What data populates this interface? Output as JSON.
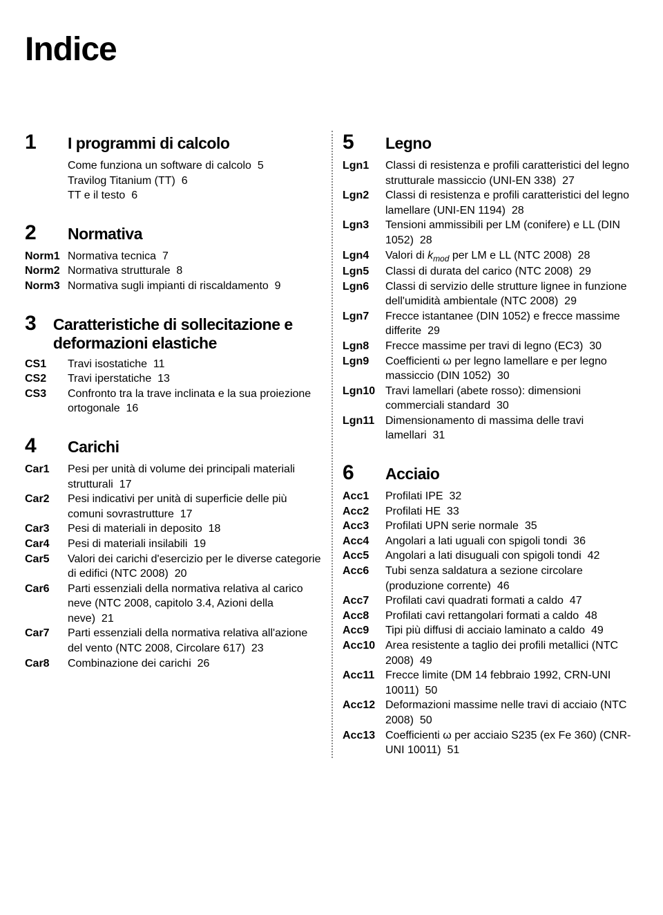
{
  "title": "Indice",
  "left_sections": [
    {
      "num": "1",
      "title": "I programmi di calcolo",
      "entries": [
        {
          "code": "",
          "parts": [
            [
              "Come funziona un software di calcolo",
              "5"
            ]
          ]
        },
        {
          "code": "",
          "parts": [
            [
              "Travilog Titanium (TT)",
              "6"
            ]
          ]
        },
        {
          "code": "",
          "parts": [
            [
              "TT e il testo",
              "6"
            ]
          ]
        }
      ]
    },
    {
      "num": "2",
      "title": "Normativa",
      "entries": [
        {
          "code": "Norm1",
          "parts": [
            [
              "Normativa tecnica",
              "7"
            ]
          ]
        },
        {
          "code": "Norm2",
          "parts": [
            [
              "Normativa strutturale",
              "8"
            ]
          ]
        },
        {
          "code": "Norm3",
          "parts": [
            [
              "Normativa sugli impianti di riscaldamento",
              "9"
            ]
          ]
        }
      ]
    },
    {
      "num": "3",
      "title": "Caratteristiche di sollecitazione e deformazioni elastiche",
      "entries": [
        {
          "code": "CS1",
          "parts": [
            [
              "Travi isostatiche",
              "11"
            ]
          ]
        },
        {
          "code": "CS2",
          "parts": [
            [
              "Travi iperstatiche",
              "13"
            ]
          ]
        },
        {
          "code": "CS3",
          "parts": [
            [
              "Confronto tra la trave inclinata e la sua proiezione ortogonale",
              "16"
            ]
          ]
        }
      ]
    },
    {
      "num": "4",
      "title": "Carichi",
      "entries": [
        {
          "code": "Car1",
          "parts": [
            [
              "Pesi per unità di volume dei principali materiali strutturali",
              "17"
            ]
          ]
        },
        {
          "code": "Car2",
          "parts": [
            [
              "Pesi indicativi per unità di superficie delle più comuni sovrastrutture",
              "17"
            ]
          ]
        },
        {
          "code": "Car3",
          "parts": [
            [
              "Pesi di materiali in deposito",
              "18"
            ]
          ]
        },
        {
          "code": "Car4",
          "parts": [
            [
              "Pesi di materiali insilabili",
              "19"
            ]
          ]
        },
        {
          "code": "Car5",
          "parts": [
            [
              "Valori dei carichi d'esercizio per le diverse categorie di edifici (NTC 2008)",
              "20"
            ]
          ]
        },
        {
          "code": "Car6",
          "parts": [
            [
              "Parti essenziali della normativa relativa al carico neve (NTC 2008, capitolo 3.4, Azioni della neve)",
              "21"
            ]
          ]
        },
        {
          "code": "Car7",
          "parts": [
            [
              "Parti essenziali della normativa relativa all'azione del vento (NTC 2008, Circolare 617)",
              "23"
            ]
          ]
        },
        {
          "code": "Car8",
          "parts": [
            [
              "Combinazione dei carichi",
              "26"
            ]
          ]
        }
      ]
    }
  ],
  "right_sections": [
    {
      "num": "5",
      "title": "Legno",
      "entries": [
        {
          "code": "Lgn1",
          "parts": [
            [
              "Classi di resistenza e profili caratteristici del legno strutturale massiccio (UNI-EN 338)",
              "27"
            ]
          ]
        },
        {
          "code": "Lgn2",
          "parts": [
            [
              "Classi di resistenza e profili caratteristici del legno lamellare (UNI-EN 1194)",
              "28"
            ]
          ]
        },
        {
          "code": "Lgn3",
          "parts": [
            [
              "Tensioni ammissibili per LM (conifere) e LL (DIN 1052)",
              "28"
            ]
          ]
        },
        {
          "code": "Lgn4",
          "parts": [
            [
              "Valori di k_mod per LM e LL (NTC 2008)",
              "28"
            ]
          ],
          "kmod": true
        },
        {
          "code": "Lgn5",
          "parts": [
            [
              "Classi di durata del carico (NTC 2008)",
              "29"
            ]
          ]
        },
        {
          "code": "Lgn6",
          "parts": [
            [
              "Classi di servizio delle strutture lignee in funzione dell'umidità ambientale (NTC 2008)",
              "29"
            ]
          ]
        },
        {
          "code": "Lgn7",
          "parts": [
            [
              "Frecce istantanee (DIN 1052) e frecce massime differite",
              "29"
            ]
          ]
        },
        {
          "code": "Lgn8",
          "parts": [
            [
              "Frecce massime per travi di legno (EC3)",
              "30"
            ]
          ]
        },
        {
          "code": "Lgn9",
          "parts": [
            [
              "Coefficienti ω per legno lamellare e per legno massiccio (DIN 1052)",
              "30"
            ]
          ]
        },
        {
          "code": "Lgn10",
          "parts": [
            [
              "Travi lamellari (abete rosso): dimensioni commerciali standard",
              "30"
            ]
          ]
        },
        {
          "code": "Lgn11",
          "parts": [
            [
              "Dimensionamento di massima delle travi lamellari",
              "31"
            ]
          ]
        }
      ]
    },
    {
      "num": "6",
      "title": "Acciaio",
      "entries": [
        {
          "code": "Acc1",
          "parts": [
            [
              "Profilati IPE",
              "32"
            ]
          ]
        },
        {
          "code": "Acc2",
          "parts": [
            [
              "Profilati HE",
              "33"
            ]
          ]
        },
        {
          "code": "Acc3",
          "parts": [
            [
              "Profilati UPN serie normale",
              "35"
            ]
          ]
        },
        {
          "code": "Acc4",
          "parts": [
            [
              "Angolari a lati uguali con spigoli tondi",
              "36"
            ]
          ]
        },
        {
          "code": "Acc5",
          "parts": [
            [
              "Angolari a lati disuguali con spigoli tondi",
              "42"
            ]
          ]
        },
        {
          "code": "Acc6",
          "parts": [
            [
              "Tubi senza saldatura a sezione circolare (produzione corrente)",
              "46"
            ]
          ]
        },
        {
          "code": "Acc7",
          "parts": [
            [
              "Profilati cavi quadrati formati a caldo",
              "47"
            ]
          ]
        },
        {
          "code": "Acc8",
          "parts": [
            [
              "Profilati cavi rettangolari formati a caldo",
              "48"
            ]
          ]
        },
        {
          "code": "Acc9",
          "parts": [
            [
              "Tipi più diffusi di acciaio laminato a caldo",
              "49"
            ]
          ]
        },
        {
          "code": "Acc10",
          "parts": [
            [
              "Area resistente a taglio dei profili metallici (NTC 2008)",
              "49"
            ]
          ]
        },
        {
          "code": "Acc11",
          "parts": [
            [
              "Frecce limite (DM 14 febbraio 1992, CRN-UNI 10011)",
              "50"
            ]
          ]
        },
        {
          "code": "Acc12",
          "parts": [
            [
              "Deformazioni massime nelle travi di acciaio (NTC 2008)",
              "50"
            ]
          ]
        },
        {
          "code": "Acc13",
          "parts": [
            [
              "Coefficienti ω per acciaio S235 (ex Fe 360) (CNR-UNI 10011)",
              "51"
            ]
          ]
        }
      ]
    }
  ],
  "style": {
    "text_color": "#000000",
    "background": "#ffffff",
    "divider_color": "#888888",
    "title_fontsize": 48,
    "section_num_fontsize": 30,
    "section_title_fontsize": 23,
    "body_fontsize": 16
  }
}
